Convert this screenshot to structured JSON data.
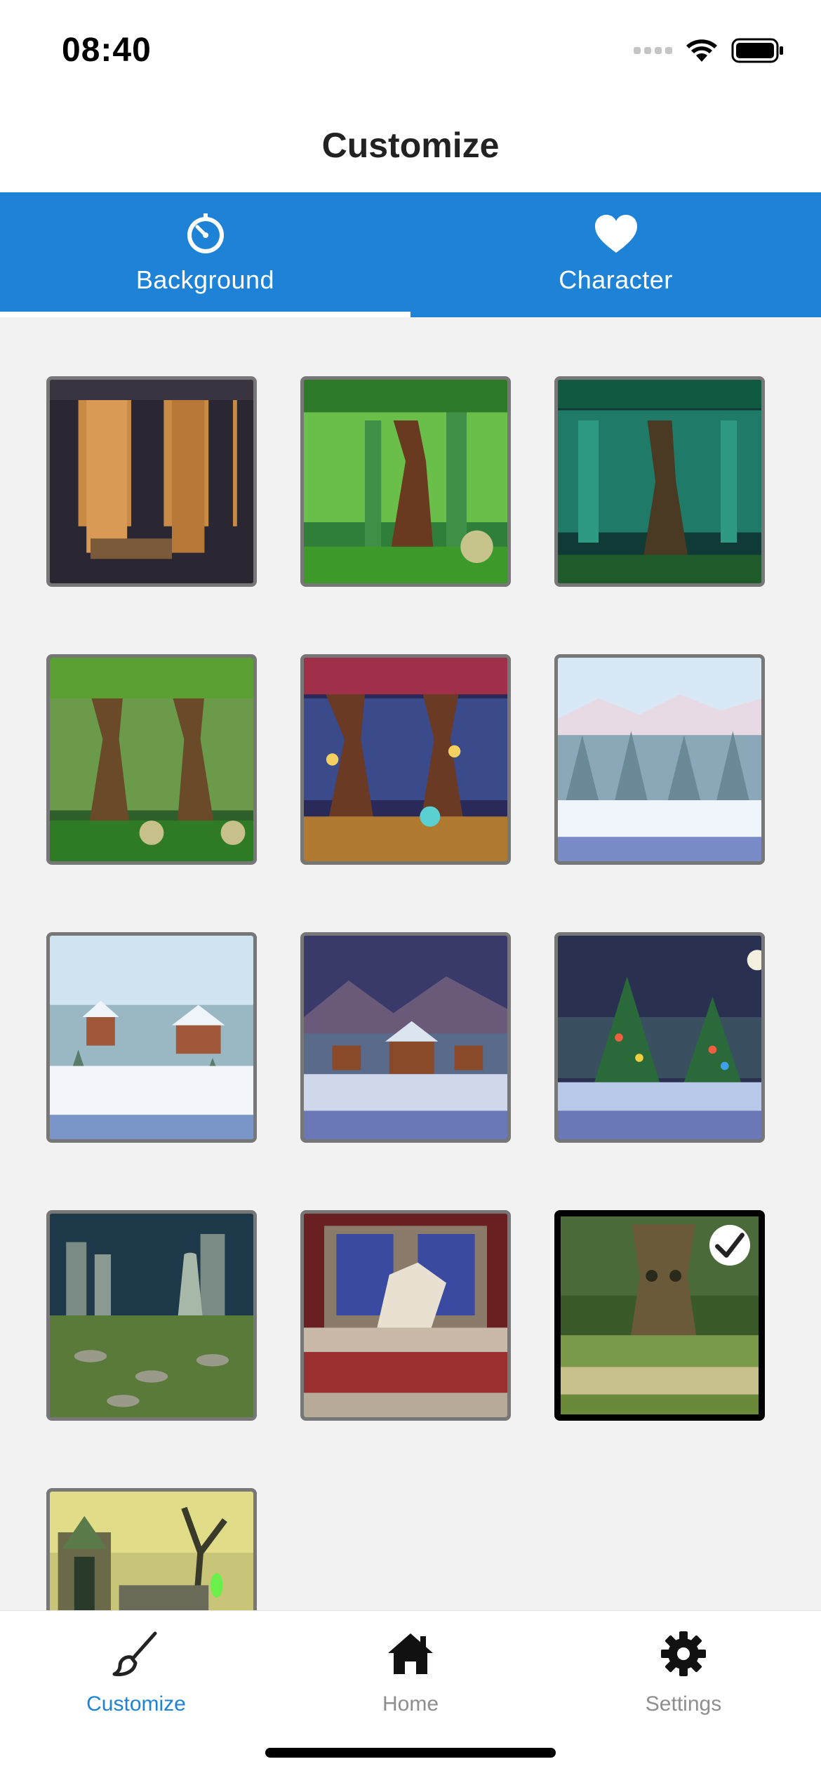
{
  "status": {
    "time": "08:40"
  },
  "header": {
    "title": "Customize"
  },
  "tabs": [
    {
      "label": "Background",
      "icon": "timer-icon",
      "active": true
    },
    {
      "label": "Character",
      "icon": "heart-icon",
      "active": false
    }
  ],
  "backgrounds": [
    {
      "scene": "pixel dusk forest"
    },
    {
      "scene": "green jungle"
    },
    {
      "scene": "teal enchanted forest"
    },
    {
      "scene": "lush forest"
    },
    {
      "scene": "lantern forest at night"
    },
    {
      "scene": "snowy pine forest"
    },
    {
      "scene": "winter village"
    },
    {
      "scene": "mountain winter village at dusk"
    },
    {
      "scene": "christmas trees at night"
    },
    {
      "scene": "ancient ruins with statue"
    },
    {
      "scene": "castle hall with gargoyle"
    },
    {
      "scene": "living tree forest",
      "selected": true
    },
    {
      "scene": "haunted graveyard"
    }
  ],
  "bottom_nav": [
    {
      "label": "Customize",
      "icon": "brush-icon",
      "active": true
    },
    {
      "label": "Home",
      "icon": "home-icon",
      "active": false
    },
    {
      "label": "Settings",
      "icon": "gear-icon",
      "active": false
    }
  ],
  "colors": {
    "accent": "#1e83d6",
    "inactive": "#8e8e8e"
  }
}
